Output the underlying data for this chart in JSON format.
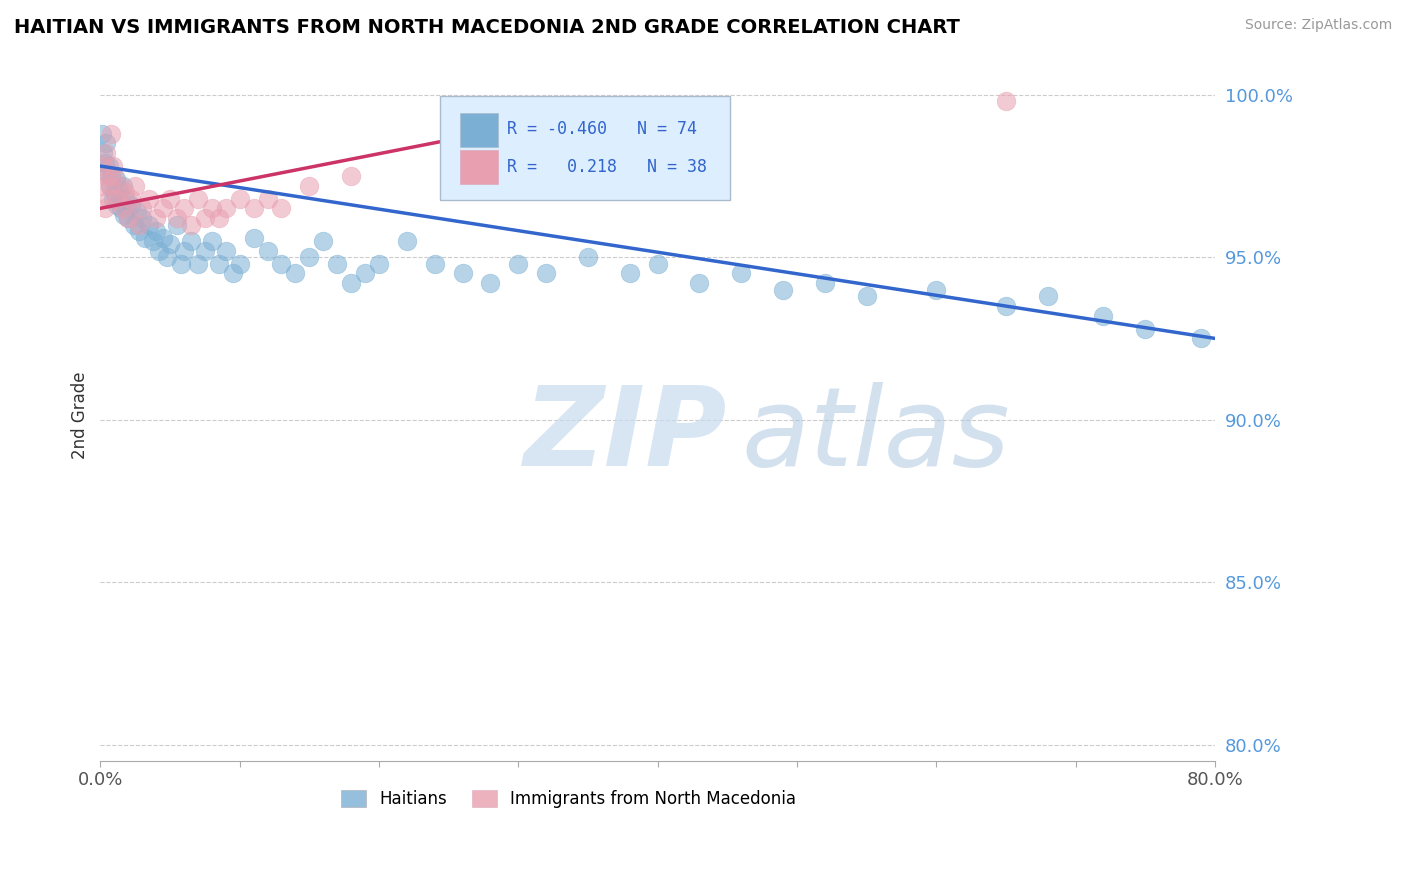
{
  "title": "HAITIAN VS IMMIGRANTS FROM NORTH MACEDONIA 2ND GRADE CORRELATION CHART",
  "source": "Source: ZipAtlas.com",
  "ylabel_label": "2nd Grade",
  "x_min": 0.0,
  "x_max": 0.8,
  "y_min": 0.795,
  "y_max": 1.008,
  "x_ticks": [
    0.0,
    0.1,
    0.2,
    0.3,
    0.4,
    0.5,
    0.6,
    0.7,
    0.8
  ],
  "x_tick_labels": [
    "0.0%",
    "",
    "",
    "",
    "",
    "",
    "",
    "",
    "80.0%"
  ],
  "y_ticks": [
    0.8,
    0.85,
    0.9,
    0.95,
    1.0
  ],
  "y_tick_labels": [
    "80.0%",
    "85.0%",
    "90.0%",
    "95.0%",
    "100.0%"
  ],
  "blue_color": "#7bafd4",
  "pink_color": "#e8a0b0",
  "blue_line_color": "#3366cc",
  "pink_line_color": "#cc3366",
  "blue_R": -0.46,
  "blue_N": 74,
  "pink_R": 0.218,
  "pink_N": 38,
  "legend_blue_label": "Haitians",
  "legend_pink_label": "Immigrants from North Macedonia",
  "blue_scatter_x": [
    0.001,
    0.002,
    0.003,
    0.004,
    0.005,
    0.006,
    0.007,
    0.008,
    0.009,
    0.01,
    0.011,
    0.012,
    0.013,
    0.014,
    0.015,
    0.016,
    0.017,
    0.018,
    0.019,
    0.02,
    0.022,
    0.024,
    0.026,
    0.028,
    0.03,
    0.032,
    0.035,
    0.038,
    0.04,
    0.042,
    0.045,
    0.048,
    0.05,
    0.055,
    0.058,
    0.06,
    0.065,
    0.07,
    0.075,
    0.08,
    0.085,
    0.09,
    0.095,
    0.1,
    0.11,
    0.12,
    0.13,
    0.14,
    0.15,
    0.16,
    0.17,
    0.18,
    0.19,
    0.2,
    0.22,
    0.24,
    0.26,
    0.28,
    0.3,
    0.32,
    0.35,
    0.38,
    0.4,
    0.43,
    0.46,
    0.49,
    0.52,
    0.55,
    0.6,
    0.65,
    0.68,
    0.72,
    0.75,
    0.79
  ],
  "blue_scatter_y": [
    0.988,
    0.982,
    0.979,
    0.985,
    0.976,
    0.978,
    0.972,
    0.975,
    0.968,
    0.97,
    0.974,
    0.966,
    0.971,
    0.968,
    0.965,
    0.972,
    0.963,
    0.968,
    0.965,
    0.962,
    0.966,
    0.96,
    0.964,
    0.958,
    0.962,
    0.956,
    0.96,
    0.955,
    0.958,
    0.952,
    0.956,
    0.95,
    0.954,
    0.96,
    0.948,
    0.952,
    0.955,
    0.948,
    0.952,
    0.955,
    0.948,
    0.952,
    0.945,
    0.948,
    0.956,
    0.952,
    0.948,
    0.945,
    0.95,
    0.955,
    0.948,
    0.942,
    0.945,
    0.948,
    0.955,
    0.948,
    0.945,
    0.942,
    0.948,
    0.945,
    0.95,
    0.945,
    0.948,
    0.942,
    0.945,
    0.94,
    0.942,
    0.938,
    0.94,
    0.935,
    0.938,
    0.932,
    0.928,
    0.925
  ],
  "pink_scatter_x": [
    0.001,
    0.002,
    0.003,
    0.004,
    0.005,
    0.006,
    0.007,
    0.008,
    0.009,
    0.01,
    0.012,
    0.014,
    0.016,
    0.018,
    0.02,
    0.022,
    0.025,
    0.028,
    0.03,
    0.035,
    0.04,
    0.045,
    0.05,
    0.055,
    0.06,
    0.065,
    0.07,
    0.075,
    0.08,
    0.085,
    0.09,
    0.1,
    0.11,
    0.12,
    0.13,
    0.15,
    0.18,
    0.65
  ],
  "pink_scatter_y": [
    0.972,
    0.978,
    0.965,
    0.982,
    0.975,
    0.968,
    0.972,
    0.988,
    0.978,
    0.975,
    0.968,
    0.972,
    0.965,
    0.97,
    0.962,
    0.968,
    0.972,
    0.96,
    0.965,
    0.968,
    0.962,
    0.965,
    0.968,
    0.962,
    0.965,
    0.96,
    0.968,
    0.962,
    0.965,
    0.962,
    0.965,
    0.968,
    0.965,
    0.968,
    0.965,
    0.972,
    0.975,
    0.998
  ],
  "blue_trendline_x0": 0.0,
  "blue_trendline_x1": 0.8,
  "blue_trendline_y0": 0.978,
  "blue_trendline_y1": 0.925,
  "pink_trendline_x0": 0.0,
  "pink_trendline_x1": 0.25,
  "pink_trendline_y0": 0.965,
  "pink_trendline_y1": 0.986
}
